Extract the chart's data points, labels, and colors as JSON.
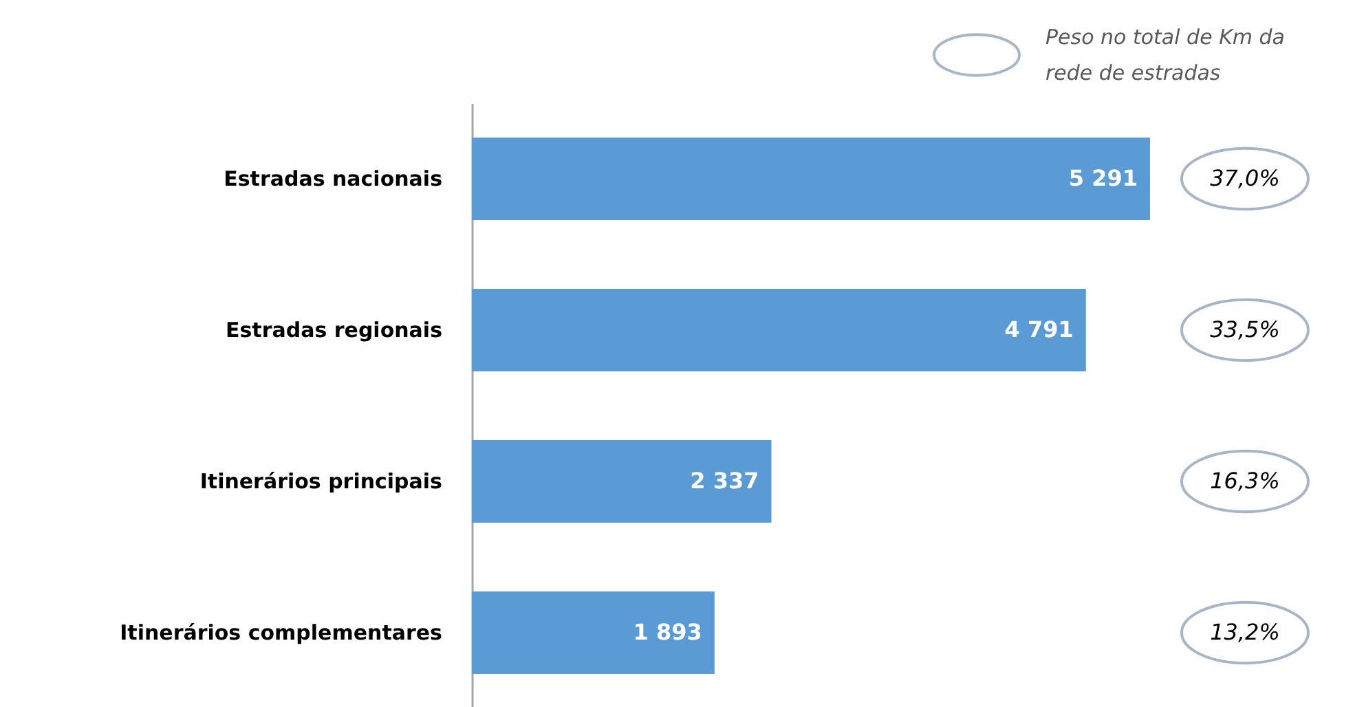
{
  "chart_data": {
    "type": "bar",
    "orientation": "horizontal",
    "categories": [
      "Estradas nacionais",
      "Estradas regionais",
      "Itinerários principais",
      "Itinerários complementares"
    ],
    "values": [
      5291,
      4791,
      2337,
      1893
    ],
    "value_labels": [
      "5 291",
      "4 791",
      "2 337",
      "1 893"
    ],
    "color": "#5b9bd5",
    "annotations": [
      "Peso no total de Km da rede de estradas",
      "37,0%",
      "33,5%",
      "16,3%",
      "13,2%"
    ]
  }
}
